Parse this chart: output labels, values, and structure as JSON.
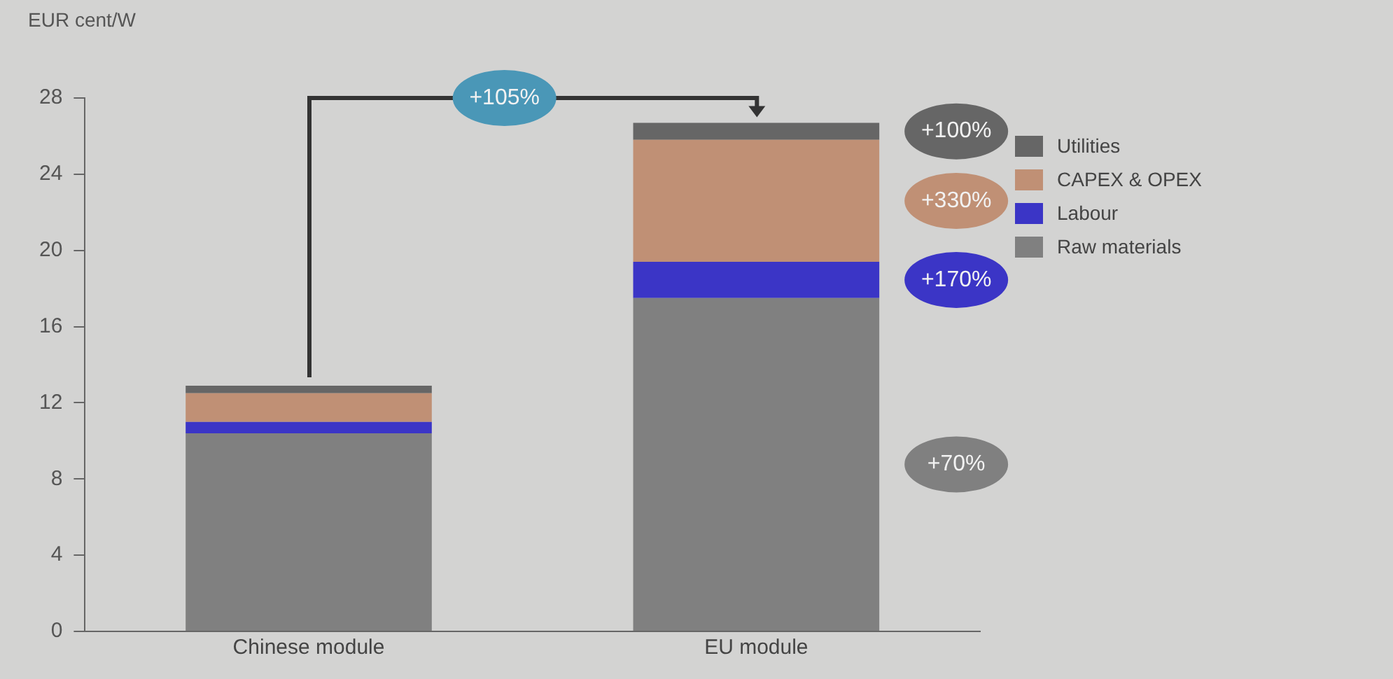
{
  "chart_data": {
    "type": "bar",
    "stacked": true,
    "ylabel": "EUR cent/W",
    "categories": [
      "Chinese module",
      "EU module"
    ],
    "series": [
      {
        "name": "Raw materials",
        "color": "#808080",
        "values": [
          10.4,
          17.5
        ]
      },
      {
        "name": "Labour",
        "color": "#3b35c6",
        "values": [
          0.6,
          1.9
        ]
      },
      {
        "name": "CAPEX & OPEX",
        "color": "#c09075",
        "values": [
          1.5,
          6.4
        ]
      },
      {
        "name": "Utilities",
        "color": "#666666",
        "values": [
          0.4,
          0.9
        ]
      }
    ],
    "ylim": [
      0,
      28
    ],
    "yticks": [
      0,
      4,
      8,
      12,
      16,
      20,
      24,
      28
    ],
    "grid": false,
    "legend": "right",
    "annotations": [
      "+105%",
      "+100%",
      "+330%",
      "+170%",
      "+70%"
    ]
  }
}
